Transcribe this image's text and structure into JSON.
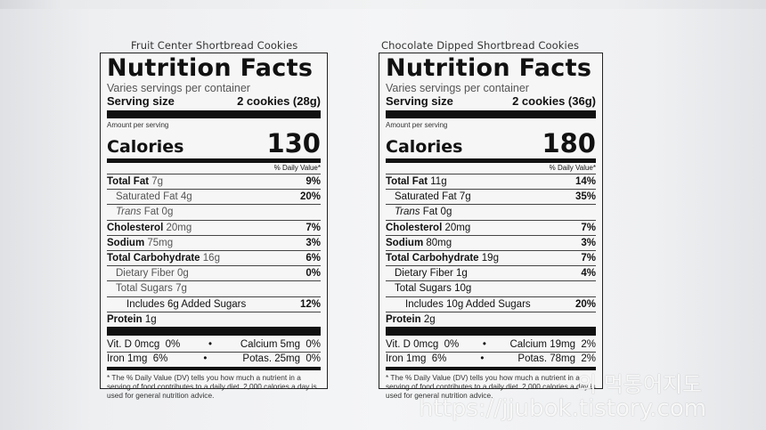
{
  "left": {
    "product_title": "Fruit Center Shortbread Cookies",
    "heading": "Nutrition Facts",
    "servings_per_container": "Varies servings per container",
    "serving_size_label": "Serving size",
    "serving_size_value": "2 cookies (28g)",
    "amount_per_serving": "Amount per serving",
    "calories_label": "Calories",
    "calories_value": "130",
    "daily_value_header": "% Daily Value*",
    "nutrients": [
      {
        "name": "Total Fat",
        "amount": "7g",
        "dv": "9%"
      },
      {
        "name": "Saturated Fat",
        "amount": "4g",
        "dv": "20%"
      },
      {
        "name": "Trans",
        "amount": "Fat 0g",
        "dv": ""
      },
      {
        "name": "Cholesterol",
        "amount": "20mg",
        "dv": "7%"
      },
      {
        "name": "Sodium",
        "amount": "75mg",
        "dv": "3%"
      },
      {
        "name": "Total Carbohydrate",
        "amount": "16g",
        "dv": "6%"
      },
      {
        "name": "Dietary Fiber",
        "amount": "0g",
        "dv": "0%"
      },
      {
        "name": "Total Sugars",
        "amount": "7g",
        "dv": ""
      },
      {
        "name": "Includes 6g Added Sugars",
        "amount": "",
        "dv": "12%"
      },
      {
        "name": "Protein",
        "amount": "1g",
        "dv": ""
      }
    ],
    "vitamins": [
      {
        "left": "Vit. D 0mcg  0%",
        "right": "Calcium 5mg  0%"
      },
      {
        "left": "Iron 1mg  6%",
        "right": "Potas. 25mg  0%"
      }
    ],
    "bullet": "•",
    "footnote": "* The % Daily Value (DV) tells you how much a nutrient in a serving of food contributes to a daily diet. 2,000 calories a day is used for general nutrition advice."
  },
  "right": {
    "product_title": "Chocolate Dipped Shortbread Cookies",
    "heading": "Nutrition Facts",
    "servings_per_container": "Varies servings per container",
    "serving_size_label": "Serving size",
    "serving_size_value": "2 cookies (36g)",
    "amount_per_serving": "Amount per serving",
    "calories_label": "Calories",
    "calories_value": "180",
    "daily_value_header": "% Daily Value*",
    "nutrients": [
      {
        "name": "Total Fat",
        "amount": "11g",
        "dv": "14%"
      },
      {
        "name": "Saturated Fat",
        "amount": "7g",
        "dv": "35%"
      },
      {
        "name": "Trans",
        "amount": "Fat 0g",
        "dv": ""
      },
      {
        "name": "Cholesterol",
        "amount": "20mg",
        "dv": "7%"
      },
      {
        "name": "Sodium",
        "amount": "80mg",
        "dv": "3%"
      },
      {
        "name": "Total Carbohydrate",
        "amount": "19g",
        "dv": "7%"
      },
      {
        "name": "Dietary Fiber",
        "amount": "1g",
        "dv": "4%"
      },
      {
        "name": "Total Sugars",
        "amount": "10g",
        "dv": ""
      },
      {
        "name": "Includes 10g Added Sugars",
        "amount": "",
        "dv": "20%"
      },
      {
        "name": "Protein",
        "amount": "2g",
        "dv": ""
      }
    ],
    "vitamins": [
      {
        "left": "Vit. D 0mcg  0%",
        "right": "Calcium 19mg  2%"
      },
      {
        "left": "Iron 1mg  6%",
        "right": "Potas. 78mg  2%"
      }
    ],
    "bullet": "•",
    "footnote": "* The % Daily Value (DV) tells you how much a nutrient in a serving of food contributes to a daily diet. 2,000 calories a day is used for general nutrition advice."
  },
  "watermark": {
    "korean": "의 먹동어지도",
    "url": "https://jjubok.tistory.com"
  }
}
